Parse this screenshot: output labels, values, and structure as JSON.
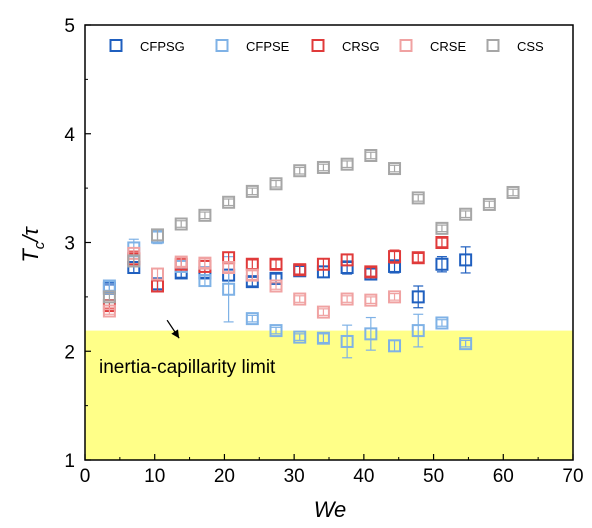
{
  "chart_data": {
    "type": "scatter",
    "xlabel": "We",
    "ylabel_main": "T",
    "ylabel_sub": "c",
    "ylabel_rest": "/τ",
    "xlim": [
      0,
      70
    ],
    "ylim": [
      1,
      5
    ],
    "x_ticks": [
      "0",
      "10",
      "20",
      "30",
      "40",
      "50",
      "60",
      "70"
    ],
    "y_ticks": [
      "1",
      "2",
      "3",
      "4",
      "5"
    ],
    "grid": false,
    "legend_position": "top",
    "shaded_region": {
      "y_min": 1,
      "y_max": 2.19,
      "color": "#ffff88"
    },
    "annotation": {
      "text": "inertia-capillarity limit",
      "arrow_to": [
        13.5,
        2.12
      ]
    },
    "series": [
      {
        "name": "CFPSG",
        "color": "#1f5fbf",
        "points": [
          [
            3.5,
            2.58,
            0.03
          ],
          [
            7,
            2.77,
            0.05
          ],
          [
            10.4,
            2.62,
            0.05
          ],
          [
            13.8,
            2.72,
            0.04
          ],
          [
            17.2,
            2.72,
            0.04
          ],
          [
            20.6,
            2.7,
            0.05
          ],
          [
            24,
            2.64,
            0.04
          ],
          [
            27.4,
            2.67,
            0.04
          ],
          [
            30.8,
            2.74,
            0.04
          ],
          [
            34.2,
            2.73,
            0.05
          ],
          [
            37.6,
            2.77,
            0.06
          ],
          [
            41,
            2.71,
            0.05
          ],
          [
            44.4,
            2.78,
            0.06
          ],
          [
            47.8,
            2.5,
            0.1
          ],
          [
            51.2,
            2.8,
            0.07
          ],
          [
            54.6,
            2.84,
            0.12
          ]
        ]
      },
      {
        "name": "CFPSE",
        "color": "#7fb2e6",
        "points": [
          [
            3.5,
            2.6,
            0.04
          ],
          [
            7,
            2.95,
            0.08
          ],
          [
            10.4,
            3.05,
            0.06
          ],
          [
            13.8,
            2.78,
            0.05
          ],
          [
            17.2,
            2.65,
            0.05
          ],
          [
            20.6,
            2.57,
            0.3
          ],
          [
            24,
            2.3,
            0.03
          ],
          [
            27.4,
            2.19,
            0.03
          ],
          [
            30.8,
            2.13,
            0.03
          ],
          [
            34.2,
            2.12,
            0.04
          ],
          [
            37.6,
            2.09,
            0.15
          ],
          [
            41,
            2.16,
            0.15
          ],
          [
            44.4,
            2.05,
            0.05
          ],
          [
            47.8,
            2.19,
            0.15
          ],
          [
            51.2,
            2.26,
            0.03
          ],
          [
            54.6,
            2.07,
            0.03
          ]
        ]
      },
      {
        "name": "CRSG",
        "color": "#e03a3a",
        "points": [
          [
            3.5,
            2.42,
            0.03
          ],
          [
            7,
            2.85,
            0.07
          ],
          [
            10.4,
            2.6,
            0.05
          ],
          [
            13.8,
            2.8,
            0.05
          ],
          [
            17.2,
            2.78,
            0.05
          ],
          [
            20.6,
            2.86,
            0.05
          ],
          [
            24,
            2.8,
            0.04
          ],
          [
            27.4,
            2.8,
            0.04
          ],
          [
            30.8,
            2.75,
            0.04
          ],
          [
            34.2,
            2.8,
            0.05
          ],
          [
            37.6,
            2.84,
            0.05
          ],
          [
            41,
            2.73,
            0.04
          ],
          [
            44.4,
            2.87,
            0.06
          ],
          [
            47.8,
            2.86,
            0.04
          ],
          [
            51.2,
            3.0,
            0.04
          ]
        ]
      },
      {
        "name": "CRSE",
        "color": "#f0a2a2",
        "points": [
          [
            3.5,
            2.37,
            0.03
          ],
          [
            7,
            2.9,
            0.05
          ],
          [
            10.4,
            2.71,
            0.05
          ],
          [
            13.8,
            2.82,
            0.04
          ],
          [
            17.2,
            2.81,
            0.04
          ],
          [
            20.6,
            2.77,
            0.04
          ],
          [
            24,
            2.7,
            0.04
          ],
          [
            27.4,
            2.6,
            0.03
          ],
          [
            30.8,
            2.48,
            0.03
          ],
          [
            34.2,
            2.36,
            0.03
          ],
          [
            37.6,
            2.48,
            0.03
          ],
          [
            41,
            2.47,
            0.03
          ],
          [
            44.4,
            2.5,
            0.03
          ]
        ]
      },
      {
        "name": "CSS",
        "color": "#a6a6a6",
        "points": [
          [
            3.5,
            2.5,
            0.03
          ],
          [
            7,
            2.83,
            0.05
          ],
          [
            10.4,
            3.07,
            0.05
          ],
          [
            13.8,
            3.17,
            0.03
          ],
          [
            17.2,
            3.25,
            0.03
          ],
          [
            20.6,
            3.37,
            0.03
          ],
          [
            24,
            3.47,
            0.03
          ],
          [
            27.4,
            3.54,
            0.03
          ],
          [
            30.8,
            3.66,
            0.03
          ],
          [
            34.2,
            3.69,
            0.03
          ],
          [
            37.6,
            3.72,
            0.03
          ],
          [
            41,
            3.8,
            0.03
          ],
          [
            44.4,
            3.68,
            0.03
          ],
          [
            47.8,
            3.41,
            0.03
          ],
          [
            51.2,
            3.13,
            0.03
          ],
          [
            54.6,
            3.26,
            0.03
          ],
          [
            58,
            3.35,
            0.03
          ],
          [
            61.4,
            3.46,
            0.03
          ]
        ]
      }
    ]
  }
}
